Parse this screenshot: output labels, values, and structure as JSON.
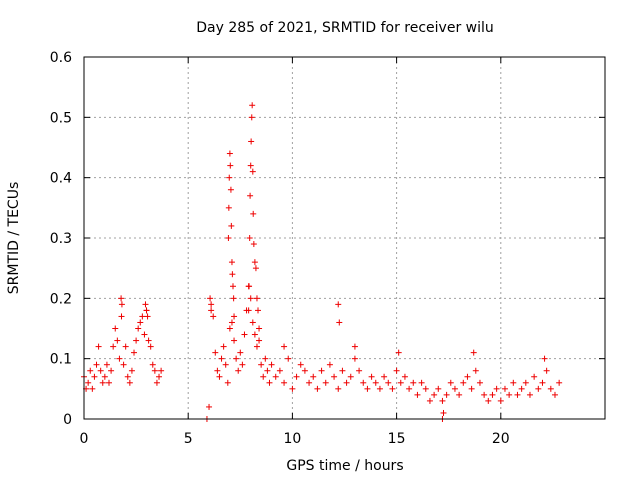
{
  "chart_data": {
    "type": "scatter",
    "title": "Day 285 of 2021, SRMTID for receiver wilu",
    "xlabel": "GPS time / hours",
    "ylabel": "SRMTID / TECUs",
    "xlim": [
      0,
      25
    ],
    "ylim": [
      0,
      0.6
    ],
    "xticks": [
      0,
      5,
      10,
      15,
      20
    ],
    "xtick_labels": [
      "0",
      "5",
      "10",
      "15",
      "20"
    ],
    "yticks": [
      0,
      0.1,
      0.2,
      0.3,
      0.4,
      0.5,
      0.6
    ],
    "ytick_labels": [
      "0",
      "0.1",
      "0.2",
      "0.3",
      "0.4",
      "0.5",
      "0.6"
    ],
    "grid": true,
    "marker": "+",
    "color": "#ee0000",
    "series": [
      {
        "name": "SRMTID",
        "x": [
          0.0,
          0.1,
          0.2,
          0.3,
          0.4,
          0.5,
          0.6,
          0.7,
          0.8,
          0.9,
          1.0,
          1.1,
          1.2,
          1.3,
          1.4,
          1.5,
          1.6,
          1.7,
          1.8,
          1.9,
          2.0,
          2.1,
          2.2,
          2.3,
          2.4,
          2.5,
          2.6,
          2.7,
          2.8,
          2.9,
          3.0,
          3.1,
          3.2,
          3.3,
          3.4,
          3.5,
          3.6,
          3.7,
          5.9,
          6.0,
          6.1,
          6.2,
          6.3,
          6.4,
          6.5,
          6.6,
          6.7,
          6.8,
          6.9,
          7.0,
          7.1,
          7.2,
          7.3,
          7.4,
          7.5,
          7.6,
          7.7,
          7.8,
          7.9,
          8.0,
          8.1,
          8.2,
          8.3,
          8.4,
          8.5,
          8.6,
          8.7,
          8.8,
          8.9,
          9.0,
          9.2,
          9.4,
          9.6,
          9.8,
          10.0,
          10.2,
          10.4,
          10.6,
          10.8,
          11.0,
          11.2,
          11.4,
          11.6,
          11.8,
          12.0,
          12.2,
          12.4,
          12.6,
          12.8,
          13.0,
          13.2,
          13.4,
          13.6,
          13.8,
          14.0,
          14.2,
          14.4,
          14.6,
          14.8,
          15.0,
          15.2,
          15.4,
          15.6,
          15.8,
          16.0,
          16.2,
          16.4,
          16.6,
          16.8,
          17.0,
          17.2,
          17.4,
          17.6,
          17.8,
          18.0,
          18.2,
          18.4,
          18.6,
          18.8,
          19.0,
          19.2,
          19.4,
          19.6,
          19.8,
          20.0,
          20.2,
          20.4,
          20.6,
          20.8,
          21.0,
          21.2,
          21.4,
          21.6,
          21.8,
          22.0,
          22.2,
          22.4,
          22.6,
          22.8,
          6.93,
          6.95,
          6.97,
          7.0,
          7.02,
          7.05,
          7.07,
          7.1,
          7.12,
          7.15,
          7.18,
          7.2,
          7.9,
          7.92,
          7.95,
          7.97,
          8.0,
          8.02,
          8.05,
          8.07,
          8.1,
          8.12,
          8.15,
          8.2,
          8.25,
          8.3,
          8.35,
          8.4,
          1.78,
          1.82,
          2.95,
          3.0,
          3.05,
          6.05,
          6.1,
          12.2,
          12.25,
          17.2,
          17.25,
          15.1,
          18.7,
          22.1,
          13.0,
          9.6
        ],
        "y": [
          0.07,
          0.05,
          0.06,
          0.08,
          0.05,
          0.07,
          0.09,
          0.12,
          0.08,
          0.06,
          0.07,
          0.09,
          0.06,
          0.08,
          0.12,
          0.15,
          0.13,
          0.1,
          0.17,
          0.09,
          0.12,
          0.07,
          0.06,
          0.08,
          0.11,
          0.13,
          0.15,
          0.16,
          0.17,
          0.14,
          0.18,
          0.13,
          0.12,
          0.09,
          0.08,
          0.06,
          0.07,
          0.08,
          0.0,
          0.02,
          0.19,
          0.17,
          0.11,
          0.08,
          0.07,
          0.1,
          0.12,
          0.09,
          0.06,
          0.15,
          0.16,
          0.13,
          0.1,
          0.08,
          0.11,
          0.09,
          0.14,
          0.18,
          0.22,
          0.2,
          0.16,
          0.14,
          0.12,
          0.13,
          0.09,
          0.07,
          0.1,
          0.08,
          0.06,
          0.09,
          0.07,
          0.08,
          0.06,
          0.1,
          0.05,
          0.07,
          0.09,
          0.08,
          0.06,
          0.07,
          0.05,
          0.08,
          0.06,
          0.09,
          0.07,
          0.05,
          0.08,
          0.06,
          0.07,
          0.1,
          0.08,
          0.06,
          0.05,
          0.07,
          0.06,
          0.05,
          0.07,
          0.06,
          0.05,
          0.08,
          0.06,
          0.07,
          0.05,
          0.06,
          0.04,
          0.06,
          0.05,
          0.03,
          0.04,
          0.05,
          0.03,
          0.04,
          0.06,
          0.05,
          0.04,
          0.06,
          0.07,
          0.05,
          0.08,
          0.06,
          0.04,
          0.03,
          0.04,
          0.05,
          0.03,
          0.05,
          0.04,
          0.06,
          0.04,
          0.05,
          0.06,
          0.04,
          0.07,
          0.05,
          0.06,
          0.08,
          0.05,
          0.04,
          0.06,
          0.3,
          0.35,
          0.4,
          0.44,
          0.42,
          0.38,
          0.32,
          0.26,
          0.24,
          0.22,
          0.2,
          0.17,
          0.18,
          0.22,
          0.3,
          0.37,
          0.42,
          0.46,
          0.5,
          0.52,
          0.41,
          0.34,
          0.29,
          0.26,
          0.25,
          0.2,
          0.18,
          0.15,
          0.2,
          0.19,
          0.19,
          0.18,
          0.17,
          0.2,
          0.18,
          0.19,
          0.16,
          0.0,
          0.01,
          0.11,
          0.11,
          0.1,
          0.12,
          0.12
        ]
      }
    ]
  }
}
